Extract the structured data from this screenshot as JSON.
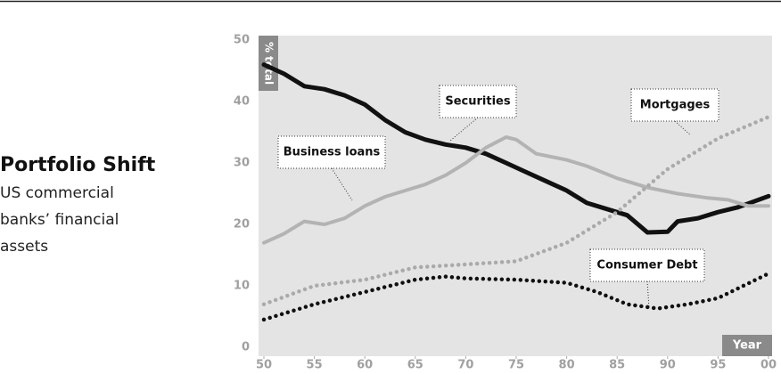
{
  "chart_data": {
    "type": "line",
    "title": "Portfolio Shift",
    "subtitle": [
      "US commercial",
      "banks’ financial",
      "assets"
    ],
    "y_label": "% total",
    "x_label": "Year",
    "xlim": [
      1950,
      2000
    ],
    "xticks": [
      {
        "value": 1950,
        "label": "50"
      },
      {
        "value": 1955,
        "label": "55"
      },
      {
        "value": 1960,
        "label": "60"
      },
      {
        "value": 1965,
        "label": "65"
      },
      {
        "value": 1970,
        "label": "70"
      },
      {
        "value": 1975,
        "label": "75"
      },
      {
        "value": 1980,
        "label": "80"
      },
      {
        "value": 1985,
        "label": "85"
      },
      {
        "value": 1990,
        "label": "90"
      },
      {
        "value": 1995,
        "label": "95"
      },
      {
        "value": 2000,
        "label": "00"
      }
    ],
    "ylim": [
      0,
      50
    ],
    "yticks": [
      0,
      10,
      20,
      30,
      40,
      50
    ],
    "grid": false,
    "series": [
      {
        "name": "Securities",
        "color": "#111111",
        "style": "solid",
        "x": [
          1950,
          1952,
          1954,
          1956,
          1958,
          1960,
          1962,
          1964,
          1966,
          1968,
          1970,
          1972,
          1974,
          1976,
          1978,
          1980,
          1982,
          1984,
          1986,
          1988,
          1990,
          1991,
          1993,
          1995,
          1997,
          2000
        ],
        "values": [
          46,
          44.5,
          42.5,
          42,
          41,
          39.5,
          37,
          35,
          33.8,
          33,
          32.5,
          31.5,
          30,
          28.5,
          27,
          25.5,
          23.5,
          22.5,
          21.5,
          18.7,
          18.8,
          20.5,
          21,
          22,
          22.8,
          24.6
        ]
      },
      {
        "name": "Business loans",
        "color": "#b3b3b3",
        "style": "solid",
        "x": [
          1950,
          1952,
          1954,
          1956,
          1958,
          1960,
          1962,
          1964,
          1966,
          1968,
          1970,
          1972,
          1974,
          1975,
          1977,
          1980,
          1982,
          1985,
          1988,
          1991,
          1994,
          1996,
          1998,
          2000
        ],
        "values": [
          17,
          18.5,
          20.5,
          20,
          21,
          23,
          24.5,
          25.5,
          26.5,
          28,
          30,
          32.5,
          34.2,
          33.8,
          31.5,
          30.5,
          29.5,
          27.5,
          26,
          25,
          24.3,
          24,
          23,
          23
        ]
      },
      {
        "name": "Mortgages",
        "color": "#aaaaaa",
        "style": "dotted",
        "x": [
          1950,
          1955,
          1960,
          1965,
          1970,
          1975,
          1980,
          1985,
          1990,
          1995,
          2000
        ],
        "values": [
          7,
          10,
          11,
          13,
          13.5,
          14,
          17,
          22,
          29,
          34,
          37.5
        ]
      },
      {
        "name": "Consumer Debt",
        "color": "#111111",
        "style": "dotted",
        "x": [
          1950,
          1955,
          1960,
          1965,
          1968,
          1970,
          1975,
          1980,
          1983,
          1986,
          1989,
          1992,
          1995,
          2000
        ],
        "values": [
          4.5,
          7,
          9,
          11,
          11.5,
          11.2,
          11,
          10.5,
          9,
          7,
          6.3,
          7,
          8,
          12
        ]
      }
    ]
  }
}
